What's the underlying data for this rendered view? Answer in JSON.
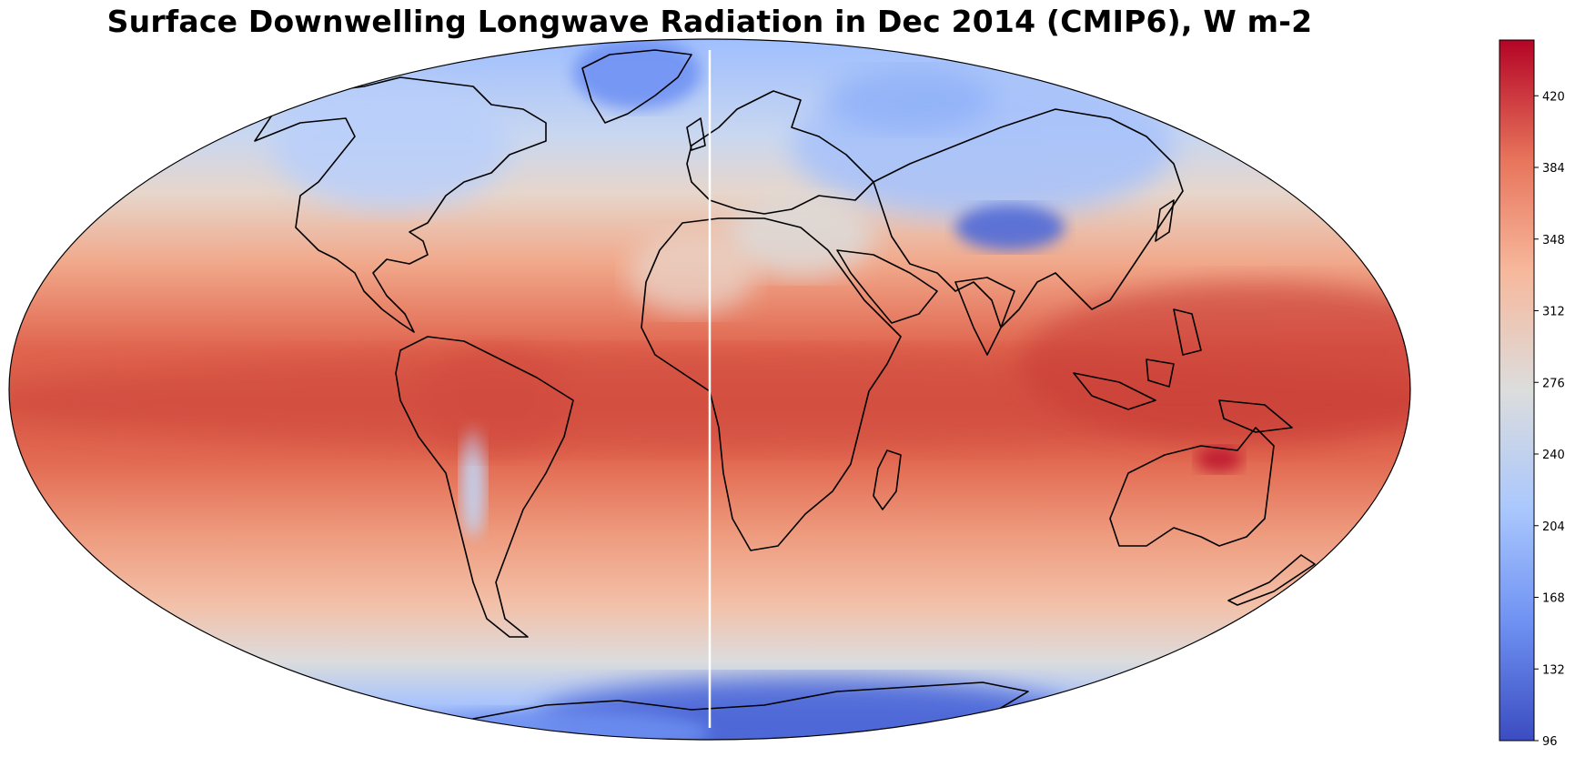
{
  "title": "Surface Downwelling Longwave Radiation in Dec 2014 (CMIP6), W m-2",
  "colorbar": {
    "ticks": [
      96,
      132,
      168,
      204,
      240,
      276,
      312,
      348,
      384,
      420
    ],
    "min": 96,
    "max": 448,
    "colormap": [
      "#3b4cc0",
      "#6f92f3",
      "#aac7fd",
      "#dcdddd",
      "#f7b89c",
      "#e7745b",
      "#b40426"
    ]
  },
  "map": {
    "projection": "Mollweide",
    "coastlines": true
  }
}
